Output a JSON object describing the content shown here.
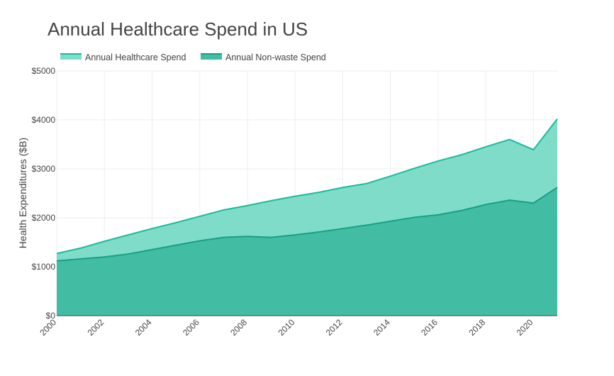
{
  "chart_data": {
    "type": "area",
    "title": "Annual Healthcare Spend in US",
    "ylabel": "Health Expenditures ($B)",
    "xlabel": "",
    "x": [
      2000,
      2001,
      2002,
      2003,
      2004,
      2005,
      2006,
      2007,
      2008,
      2009,
      2010,
      2011,
      2012,
      2013,
      2014,
      2015,
      2016,
      2017,
      2018,
      2019,
      2020,
      2021
    ],
    "series": [
      {
        "name": "Annual Healthcare Spend",
        "color": "#1abc9c",
        "fill": "#7fdcc9",
        "values": [
          1270,
          1380,
          1520,
          1650,
          1780,
          1900,
          2030,
          2160,
          2250,
          2350,
          2440,
          2520,
          2620,
          2700,
          2850,
          3010,
          3160,
          3290,
          3450,
          3600,
          3390,
          4020
        ]
      },
      {
        "name": "Annual Non-waste Spend",
        "color": "#16a085",
        "fill": "#42bda4",
        "values": [
          1120,
          1160,
          1200,
          1260,
          1350,
          1440,
          1530,
          1600,
          1620,
          1600,
          1650,
          1710,
          1780,
          1850,
          1930,
          2010,
          2060,
          2150,
          2270,
          2360,
          2300,
          2620
        ]
      }
    ],
    "xticks": [
      2000,
      2002,
      2004,
      2006,
      2008,
      2010,
      2012,
      2014,
      2016,
      2018,
      2020
    ],
    "yticks": [
      0,
      1000,
      2000,
      3000,
      4000,
      5000
    ],
    "ytick_labels": [
      "$0",
      "$1000",
      "$2000",
      "$3000",
      "$4000",
      "$5000"
    ],
    "xlim": [
      2000,
      2021
    ],
    "ylim": [
      0,
      5000
    ],
    "grid": true,
    "legend_position": "top-left"
  }
}
